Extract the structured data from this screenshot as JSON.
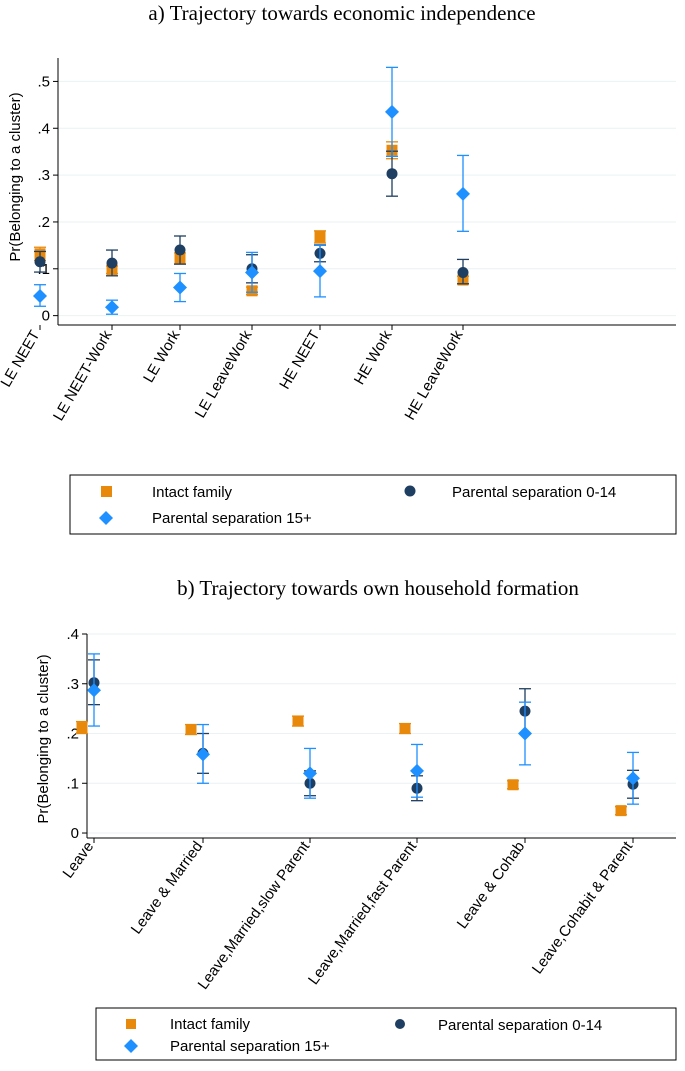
{
  "colors": {
    "intact": "#e8890c",
    "sep014": "#1e3e62",
    "sep15": "#1e90ff",
    "grid": "#eaf2f3",
    "axis": "#000000"
  },
  "chart_data": [
    {
      "type": "scatter",
      "title": "a)   Trajectory towards economic independence",
      "ylabel": "Pr(Belonging to a cluster)",
      "ylim": [
        -0.02,
        0.55
      ],
      "yticks": [
        0,
        0.1,
        0.2,
        0.3,
        0.4,
        0.5
      ],
      "ytick_labels": [
        "0",
        ".1",
        ".2",
        ".3",
        ".4",
        ".5"
      ],
      "categories": [
        "LE NEET",
        "LE NEET-Work",
        "LE Work",
        "LE LeaveWork",
        "HE NEET",
        "HE Work",
        "HE LeaveWork"
      ],
      "series": [
        {
          "name": "Intact family",
          "key": "intact",
          "marker": "square",
          "values": [
            0.132,
            0.098,
            0.122,
            0.053,
            0.168,
            0.353,
            0.076
          ],
          "ci": [
            [
              0.118,
              0.146
            ],
            [
              0.09,
              0.106
            ],
            [
              0.11,
              0.134
            ],
            [
              0.045,
              0.061
            ],
            [
              0.155,
              0.181
            ],
            [
              0.335,
              0.371
            ],
            [
              0.068,
              0.084
            ]
          ]
        },
        {
          "name": "Parental separation 0-14",
          "key": "sep014",
          "marker": "circle",
          "values": [
            0.115,
            0.112,
            0.14,
            0.1,
            0.133,
            0.303,
            0.092
          ],
          "ci": [
            [
              0.093,
              0.137
            ],
            [
              0.085,
              0.14
            ],
            [
              0.11,
              0.17
            ],
            [
              0.07,
              0.13
            ],
            [
              0.115,
              0.151
            ],
            [
              0.255,
              0.351
            ],
            [
              0.068,
              0.12
            ]
          ]
        },
        {
          "name": "Parental separation 15+",
          "key": "sep15",
          "marker": "diamond",
          "values": [
            0.042,
            0.018,
            0.06,
            0.092,
            0.095,
            0.435,
            0.26
          ],
          "ci": [
            [
              0.02,
              0.066
            ],
            [
              0.003,
              0.033
            ],
            [
              0.03,
              0.09
            ],
            [
              0.05,
              0.135
            ],
            [
              0.04,
              0.15
            ],
            [
              0.34,
              0.53
            ],
            [
              0.18,
              0.342
            ]
          ]
        }
      ],
      "legend": {
        "position": "bottom",
        "order": [
          "intact",
          "sep014",
          "sep15"
        ]
      }
    },
    {
      "type": "scatter",
      "title": "b)   Trajectory towards own household formation",
      "ylabel": "Pr(Belonging to a cluster)",
      "ylim": [
        -0.01,
        0.4
      ],
      "yticks": [
        0,
        0.1,
        0.2,
        0.3,
        0.4
      ],
      "ytick_labels": [
        "0",
        ".1",
        ".2",
        ".3",
        ".4"
      ],
      "categories": [
        "Leave",
        "Leave & Married",
        "Leave,Married,slow Parent",
        "Leave,Married,fast Parent",
        "Leave & Cohab",
        "Leave,Cohabit & Parent"
      ],
      "series": [
        {
          "name": "Intact family",
          "key": "intact",
          "marker": "square",
          "values": [
            0.212,
            0.208,
            0.225,
            0.21,
            0.097,
            0.045
          ],
          "ci": [
            [
              0.2,
              0.224
            ],
            [
              0.198,
              0.218
            ],
            [
              0.215,
              0.235
            ],
            [
              0.2,
              0.22
            ],
            [
              0.089,
              0.105
            ],
            [
              0.037,
              0.053
            ]
          ]
        },
        {
          "name": "Parental separation 0-14",
          "key": "sep014",
          "marker": "circle",
          "values": [
            0.302,
            0.16,
            0.1,
            0.09,
            0.245,
            0.098
          ],
          "ci": [
            [
              0.258,
              0.348
            ],
            [
              0.12,
              0.2
            ],
            [
              0.075,
              0.125
            ],
            [
              0.065,
              0.115
            ],
            [
              0.2,
              0.29
            ],
            [
              0.07,
              0.126
            ]
          ]
        },
        {
          "name": "Parental separation 15+",
          "key": "sep15",
          "marker": "diamond",
          "values": [
            0.287,
            0.158,
            0.12,
            0.125,
            0.2,
            0.11
          ],
          "ci": [
            [
              0.215,
              0.36
            ],
            [
              0.1,
              0.218
            ],
            [
              0.07,
              0.17
            ],
            [
              0.072,
              0.178
            ],
            [
              0.137,
              0.263
            ],
            [
              0.058,
              0.162
            ]
          ]
        }
      ],
      "legend": {
        "position": "bottom",
        "order": [
          "intact",
          "sep014",
          "sep15"
        ]
      }
    }
  ]
}
